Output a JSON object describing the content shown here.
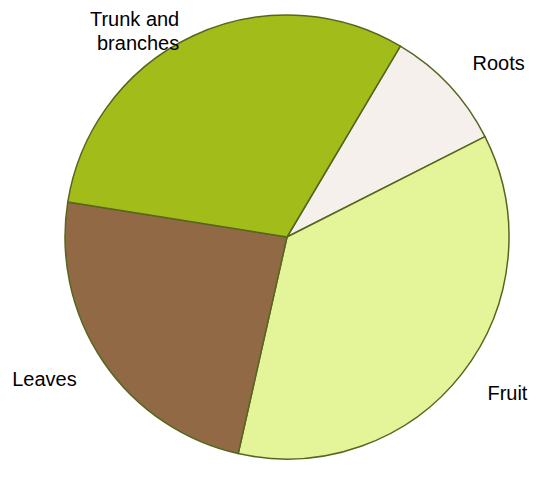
{
  "chart_data": {
    "type": "pie",
    "categories": [
      "Roots",
      "Fruit",
      "Leaves",
      "Trunk and branches"
    ],
    "values": [
      9,
      36,
      24,
      31
    ],
    "colors": [
      "#f5f0eb",
      "#e3f598",
      "#916a45",
      "#a2bd19"
    ]
  }
}
